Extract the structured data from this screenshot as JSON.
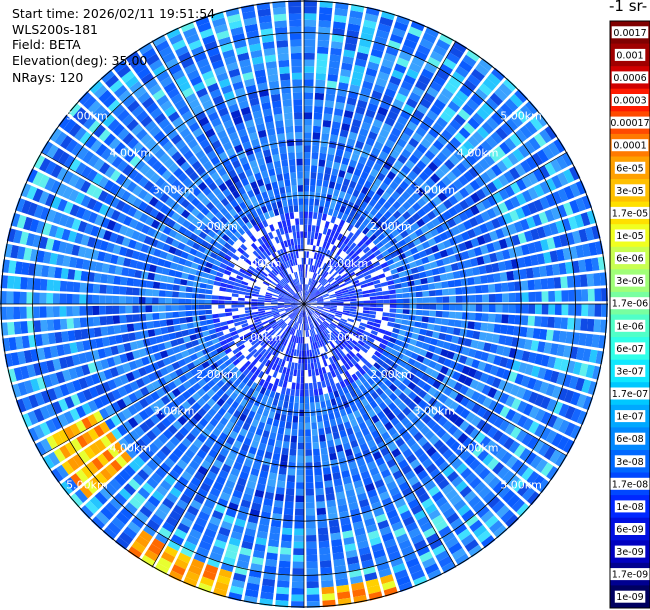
{
  "header": {
    "start_time": "Start time: 2026/02/11 19:51:54",
    "instrument": "WLS200s-181",
    "field": "Field: BETA",
    "elevation": "Elevation(deg): 35.00",
    "nrays": "NRays: 120"
  },
  "colorbar": {
    "title": "-1 sr-",
    "labels": [
      "0.0017",
      "0.001",
      "0.0006",
      "0.0003",
      "0.00017",
      "0.0001",
      "6e-05",
      "3e-05",
      "1.7e-05",
      "1e-05",
      "6e-06",
      "3e-06",
      "1.7e-06",
      "1e-06",
      "6e-07",
      "3e-07",
      "1.7e-07",
      "1e-07",
      "6e-08",
      "3e-08",
      "1.7e-08",
      "1e-08",
      "6e-09",
      "3e-09",
      "1.7e-09",
      "1e-09"
    ],
    "colors": [
      "#800000",
      "#a00000",
      "#d00000",
      "#ff1a00",
      "#ff4a00",
      "#ff7a00",
      "#ffa000",
      "#ffc000",
      "#ffe000",
      "#f0ff20",
      "#c8ff50",
      "#a0ff78",
      "#78ffa0",
      "#50ffc8",
      "#30ffe8",
      "#10e8ff",
      "#00c8ff",
      "#00a8ff",
      "#0088ff",
      "#0068ff",
      "#0048ff",
      "#0028ff",
      "#0010e0",
      "#0000c0",
      "#000090",
      "#000060"
    ]
  },
  "chart_data": {
    "type": "heatmap",
    "projection": "polar-ppi",
    "nrays": 120,
    "range_km_max": 5.6,
    "range_ring_labels": [
      "1.00km",
      "2.00km",
      "3.00km",
      "4.00km",
      "5.00km"
    ],
    "range_rings_km": [
      1,
      2,
      3,
      4,
      5
    ],
    "background_level": "1e-08 to 6e-08",
    "high_backscatter_sectors": [
      {
        "bearing_deg_range": [
          228,
          240
        ],
        "range_km": [
          4.2,
          5.3
        ],
        "level": "1e-05 to 1e-04"
      },
      {
        "bearing_deg_range": [
          195,
          215
        ],
        "range_km": [
          5.0,
          5.6
        ],
        "level": "1e-05 to 6e-05"
      },
      {
        "bearing_deg_range": [
          160,
          175
        ],
        "range_km": [
          5.2,
          5.6
        ],
        "level": "3e-06 to 1e-05"
      }
    ]
  }
}
